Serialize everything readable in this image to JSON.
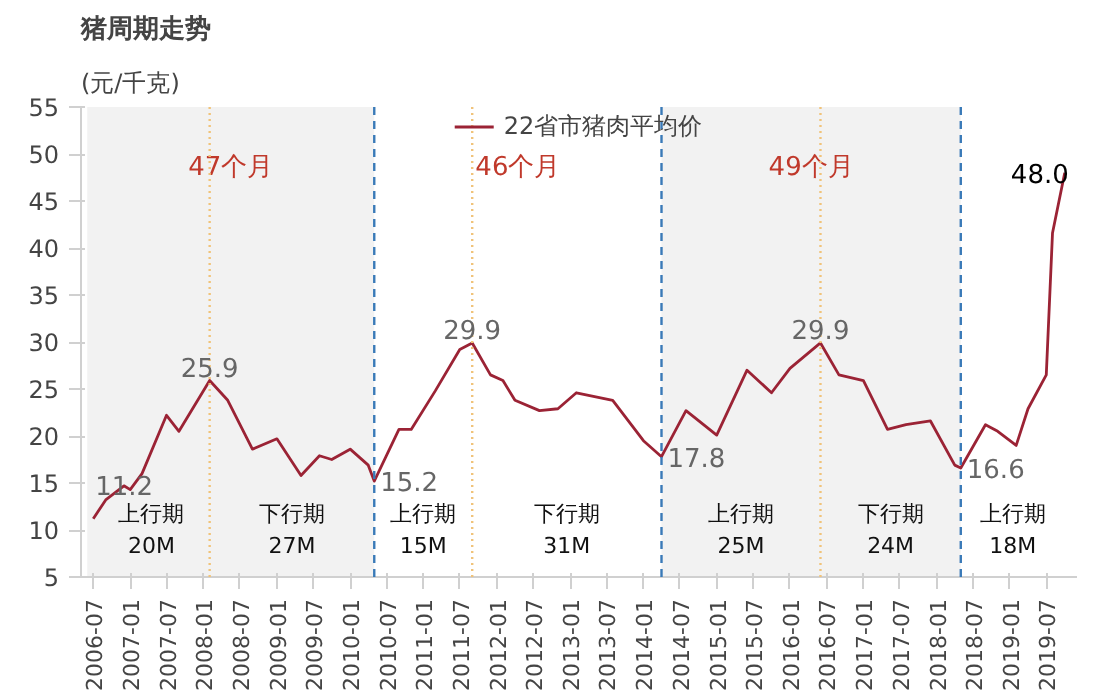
{
  "chart_data": {
    "type": "line",
    "title": "猪周期走势",
    "ylabel": "(元/千克)",
    "x": [
      "2006-07",
      "2006-09",
      "2006-12",
      "2007-01",
      "2007-03",
      "2007-07",
      "2007-09",
      "2008-02",
      "2008-05",
      "2008-09",
      "2009-01",
      "2009-05",
      "2009-08",
      "2009-10",
      "2010-01",
      "2010-04",
      "2010-05",
      "2010-09",
      "2010-11",
      "2011-03",
      "2011-07",
      "2011-09",
      "2011-12",
      "2012-02",
      "2012-04",
      "2012-08",
      "2012-11",
      "2013-02",
      "2013-08",
      "2014-01",
      "2014-04",
      "2014-08",
      "2015-01",
      "2015-06",
      "2015-10",
      "2016-01",
      "2016-06",
      "2016-09",
      "2017-01",
      "2017-05",
      "2017-08",
      "2017-12",
      "2018-04",
      "2018-05",
      "2018-09",
      "2018-11",
      "2019-02",
      "2019-04",
      "2019-07",
      "2019-08",
      "2019-10"
    ],
    "series": [
      {
        "name": "22省市猪肉平均价",
        "color": "#9b2335",
        "values": [
          11.2,
          13.2,
          14.7,
          14.3,
          16.0,
          22.2,
          20.5,
          25.9,
          23.8,
          18.6,
          19.7,
          15.8,
          17.9,
          17.5,
          18.6,
          16.9,
          15.2,
          20.7,
          20.7,
          24.8,
          29.2,
          29.9,
          26.5,
          25.9,
          23.8,
          22.7,
          22.9,
          24.6,
          23.8,
          19.5,
          17.8,
          22.7,
          20.1,
          27.0,
          24.6,
          27.2,
          29.9,
          26.5,
          25.9,
          20.7,
          21.2,
          21.6,
          16.9,
          16.6,
          21.2,
          20.5,
          19.0,
          22.9,
          26.5,
          41.6,
          48.0
        ],
        "value_labels": [
          "11.2",
          null,
          null,
          null,
          null,
          null,
          null,
          "25.9",
          null,
          null,
          null,
          null,
          null,
          null,
          null,
          null,
          "15.2",
          null,
          null,
          null,
          null,
          "29.9",
          null,
          null,
          null,
          null,
          null,
          null,
          null,
          null,
          "17.8",
          null,
          null,
          null,
          null,
          null,
          "29.9",
          null,
          null,
          null,
          null,
          null,
          null,
          "16.6",
          null,
          null,
          null,
          null,
          null,
          null,
          "48.0"
        ]
      }
    ],
    "xlim": [
      "2006-05",
      "2019-12"
    ],
    "ylim": [
      5,
      55
    ],
    "xticks": [
      "2006-07",
      "2007-01",
      "2007-07",
      "2008-01",
      "2008-07",
      "2009-01",
      "2009-07",
      "2010-01",
      "2010-07",
      "2011-01",
      "2011-07",
      "2012-01",
      "2012-07",
      "2013-01",
      "2013-07",
      "2014-01",
      "2014-07",
      "2015-01",
      "2015-07",
      "2016-01",
      "2016-07",
      "2017-01",
      "2017-07",
      "2018-01",
      "2018-07",
      "2019-01",
      "2019-07"
    ],
    "yticks": [
      5,
      10,
      15,
      20,
      25,
      30,
      35,
      40,
      45,
      50,
      55
    ],
    "grid": false,
    "legend": "top",
    "marker": "none",
    "line_style": "solid",
    "bands": [
      {
        "axis": "x",
        "from": "2006-06",
        "to": "2010-05",
        "label": "47个月",
        "color": "#f2f2f2"
      },
      {
        "axis": "x",
        "from": "2014-04",
        "to": "2018-05",
        "label": "49个月",
        "color": "#f2f2f2"
      }
    ],
    "ref_lines": [
      {
        "axis": "x",
        "value": "2010-05",
        "color": "#3a7ab8",
        "line_style": "dashed"
      },
      {
        "axis": "x",
        "value": "2014-04",
        "color": "#3a7ab8",
        "line_style": "dashed"
      },
      {
        "axis": "x",
        "value": "2018-05",
        "color": "#3a7ab8",
        "line_style": "dashed"
      },
      {
        "axis": "x",
        "value": "2008-02",
        "color": "#f0c37a",
        "line_style": "dotted"
      },
      {
        "axis": "x",
        "value": "2011-09",
        "color": "#f0c37a",
        "line_style": "dotted"
      },
      {
        "axis": "x",
        "value": "2016-06",
        "color": "#f0c37a",
        "line_style": "dotted"
      }
    ],
    "annotations": [
      "上行期\n20M",
      "下行期\n27M",
      "上行期\n15M",
      "下行期\n31M",
      "上行期\n25M",
      "下行期\n24M",
      "上行期\n18M",
      "46个月"
    ]
  }
}
